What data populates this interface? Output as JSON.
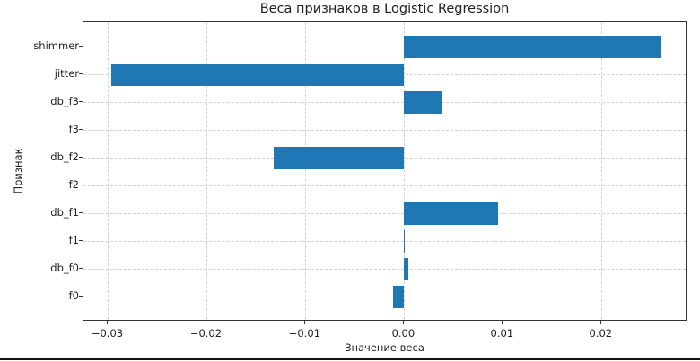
{
  "chart_data": {
    "type": "bar",
    "orientation": "horizontal",
    "title": "Веса признаков в Logistic Regression",
    "xlabel": "Значение веса",
    "ylabel": "Признак",
    "categories": [
      "shimmer",
      "jitter",
      "db_f3",
      "f3",
      "db_f2",
      "f2",
      "db_f1",
      "f1",
      "db_f0",
      "f0"
    ],
    "values": [
      0.0261,
      -0.0297,
      0.0039,
      0.0,
      -0.0132,
      0.0,
      0.0095,
      0.0001,
      0.0004,
      -0.0011
    ],
    "xlim": [
      -0.0325,
      0.0287
    ],
    "xticks": [
      -0.03,
      -0.02,
      -0.01,
      0.0,
      0.01,
      0.02
    ],
    "xtick_labels": [
      "−0.03",
      "−0.02",
      "−0.01",
      "0.00",
      "0.01",
      "0.02"
    ],
    "grid": true,
    "bar_color": "#1f77b4"
  }
}
